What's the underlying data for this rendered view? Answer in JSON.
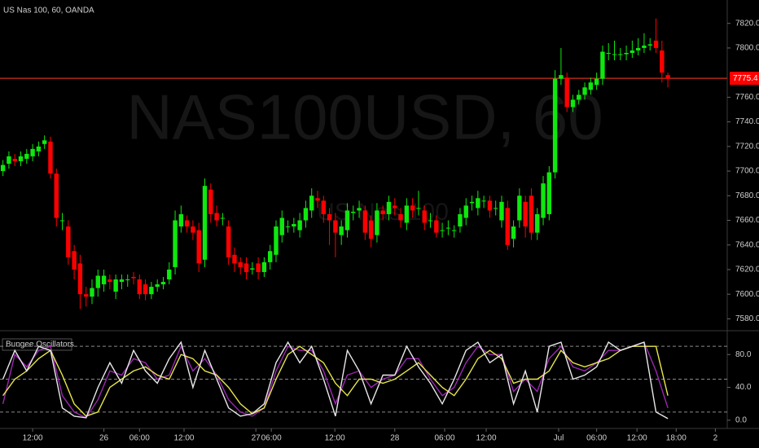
{
  "chart_data": [
    {
      "type": "candlestick",
      "title": "US Nas 100, 60, OANDA",
      "watermark": "NAS100USD, 60",
      "watermark_sub": "US Nas 100",
      "up_color": "#0ee80e",
      "down_color": "#ff0000",
      "open": [
        7700,
        7706,
        7710,
        7708,
        7710,
        7712,
        7716,
        7722,
        7724,
        7698,
        7660,
        7655,
        7635,
        7625,
        7600,
        7598,
        7605,
        7608,
        7612,
        7602,
        7610,
        7612,
        7614,
        7612,
        7608,
        7600,
        7606,
        7608,
        7612,
        7622,
        7655,
        7660,
        7655,
        7652,
        7628,
        7685,
        7666,
        7662,
        7655,
        7632,
        7626,
        7625,
        7620,
        7625,
        7618,
        7626,
        7632,
        7648,
        7655,
        7655,
        7652,
        7660,
        7668,
        7678,
        7676,
        7665,
        7660,
        7648,
        7652,
        7666,
        7668,
        7668,
        7660,
        7648,
        7668,
        7665,
        7672,
        7665,
        7658,
        7672,
        7670,
        7668,
        7660,
        7660,
        7652,
        7654,
        7652,
        7655,
        7662,
        7674,
        7670,
        7676,
        7676,
        7670,
        7660,
        7670,
        7645,
        7660,
        7675,
        7680,
        7650,
        7662,
        7665,
        7699,
        7775,
        7776,
        7752,
        7758,
        7762,
        7766,
        7770,
        7775,
        7796,
        7795,
        7795,
        7795,
        7796,
        7798,
        7800,
        7802,
        7806,
        7798,
        7778
      ],
      "high": [
        7709,
        7716,
        7714,
        7716,
        7718,
        7722,
        7724,
        7729,
        7728,
        7702,
        7666,
        7660,
        7640,
        7632,
        7606,
        7612,
        7620,
        7620,
        7616,
        7616,
        7616,
        7616,
        7618,
        7616,
        7612,
        7610,
        7612,
        7614,
        7626,
        7668,
        7672,
        7664,
        7660,
        7658,
        7694,
        7690,
        7672,
        7666,
        7660,
        7638,
        7630,
        7630,
        7626,
        7630,
        7630,
        7640,
        7660,
        7668,
        7660,
        7662,
        7666,
        7676,
        7686,
        7684,
        7680,
        7670,
        7666,
        7660,
        7674,
        7672,
        7676,
        7672,
        7664,
        7674,
        7672,
        7680,
        7678,
        7670,
        7678,
        7678,
        7684,
        7672,
        7666,
        7664,
        7658,
        7660,
        7656,
        7670,
        7678,
        7680,
        7684,
        7680,
        7680,
        7676,
        7680,
        7676,
        7660,
        7686,
        7680,
        7686,
        7670,
        7696,
        7704,
        7782,
        7800,
        7780,
        7762,
        7766,
        7772,
        7776,
        7780,
        7802,
        7804,
        7806,
        7800,
        7802,
        7806,
        7808,
        7812,
        7808,
        7824,
        7806,
        7780
      ],
      "low": [
        7696,
        7702,
        7704,
        7704,
        7706,
        7708,
        7712,
        7718,
        7694,
        7655,
        7652,
        7624,
        7612,
        7588,
        7590,
        7592,
        7598,
        7602,
        7604,
        7596,
        7604,
        7606,
        7608,
        7596,
        7595,
        7596,
        7602,
        7604,
        7608,
        7616,
        7650,
        7650,
        7644,
        7618,
        7622,
        7658,
        7655,
        7656,
        7624,
        7618,
        7616,
        7612,
        7616,
        7612,
        7614,
        7620,
        7626,
        7642,
        7650,
        7650,
        7646,
        7654,
        7662,
        7670,
        7658,
        7640,
        7630,
        7640,
        7646,
        7660,
        7662,
        7644,
        7638,
        7642,
        7660,
        7660,
        7664,
        7654,
        7652,
        7662,
        7664,
        7652,
        7654,
        7646,
        7646,
        7648,
        7646,
        7650,
        7656,
        7668,
        7664,
        7670,
        7662,
        7664,
        7654,
        7636,
        7638,
        7654,
        7646,
        7644,
        7644,
        7656,
        7660,
        7694,
        7770,
        7748,
        7748,
        7754,
        7758,
        7762,
        7766,
        7770,
        7790,
        7790,
        7790,
        7790,
        7792,
        7794,
        7796,
        7798,
        7796,
        7772,
        7768
      ],
      "close": [
        7705,
        7712,
        7708,
        7712,
        7714,
        7718,
        7720,
        7725,
        7698,
        7662,
        7660,
        7630,
        7620,
        7600,
        7598,
        7605,
        7615,
        7615,
        7610,
        7612,
        7612,
        7612,
        7613,
        7600,
        7600,
        7606,
        7608,
        7610,
        7620,
        7660,
        7665,
        7655,
        7650,
        7625,
        7688,
        7665,
        7660,
        7662,
        7630,
        7625,
        7622,
        7618,
        7621,
        7618,
        7626,
        7635,
        7655,
        7662,
        7655,
        7657,
        7660,
        7670,
        7680,
        7676,
        7665,
        7660,
        7650,
        7655,
        7668,
        7667,
        7670,
        7650,
        7645,
        7668,
        7665,
        7675,
        7670,
        7660,
        7672,
        7668,
        7670,
        7658,
        7660,
        7650,
        7652,
        7654,
        7652,
        7665,
        7672,
        7675,
        7678,
        7676,
        7668,
        7670,
        7675,
        7640,
        7655,
        7680,
        7655,
        7650,
        7665,
        7690,
        7699,
        7775,
        7778,
        7752,
        7758,
        7762,
        7768,
        7772,
        7775,
        7797,
        7796,
        7795,
        7795,
        7796,
        7798,
        7800,
        7802,
        7803,
        7800,
        7780,
        7775
      ],
      "xlim": [
        -0.5,
        122
      ],
      "xticks": [
        {
          "value": 5,
          "label": "12:00"
        },
        {
          "value": 17,
          "label": "26"
        },
        {
          "value": 23,
          "label": "06:00"
        },
        {
          "value": 30.5,
          "label": "12:00"
        },
        {
          "value": 42.6,
          "label": "27"
        },
        {
          "value": 45.2,
          "label": "06:00"
        },
        {
          "value": 55.9,
          "label": "12:00"
        },
        {
          "value": 66,
          "label": "28"
        },
        {
          "value": 74.4,
          "label": "06:00"
        },
        {
          "value": 81.4,
          "label": "12:00"
        },
        {
          "value": 93.6,
          "label": "Jul"
        },
        {
          "value": 100,
          "label": "06:00"
        },
        {
          "value": 106.8,
          "label": "12:00"
        },
        {
          "value": 113.4,
          "label": "18:00"
        },
        {
          "value": 120,
          "label": "2"
        }
      ],
      "ylim": [
        7571,
        7839
      ],
      "yticks": [
        {
          "value": 7580,
          "label": "7580.0"
        },
        {
          "value": 7600,
          "label": "7600.0"
        },
        {
          "value": 7620,
          "label": "7620.0"
        },
        {
          "value": 7640,
          "label": "7640.0"
        },
        {
          "value": 7660,
          "label": "7660.0"
        },
        {
          "value": 7680,
          "label": "7680.0"
        },
        {
          "value": 7700,
          "label": "7700.0"
        },
        {
          "value": 7720,
          "label": "7720.0"
        },
        {
          "value": 7740,
          "label": "7740.0"
        },
        {
          "value": 7760,
          "label": "7760.0"
        },
        {
          "value": 7800,
          "label": "7800.0"
        },
        {
          "value": 7820,
          "label": "7820.0"
        }
      ],
      "last_price": 7775.4,
      "last_price_color": "#ff3b1f"
    },
    {
      "type": "line",
      "title": "Bungee Oscillators",
      "x": [
        0,
        2,
        4,
        6,
        8,
        10,
        12,
        14,
        16,
        18,
        20,
        22,
        24,
        26,
        28,
        30,
        32,
        34,
        36,
        38,
        40,
        42,
        44,
        46,
        48,
        50,
        52,
        54,
        56,
        58,
        60,
        62,
        64,
        66,
        68,
        70,
        72,
        74,
        76,
        78,
        80,
        82,
        84,
        86,
        88,
        90,
        92,
        94,
        96,
        98,
        100,
        102,
        104,
        106,
        108,
        110,
        112
      ],
      "xlim": [
        -0.5,
        122
      ],
      "ylim": [
        -9,
        108
      ],
      "yticks": [
        {
          "value": 0,
          "label": "0.0"
        },
        {
          "value": 40,
          "label": "40.0"
        },
        {
          "value": 80,
          "label": "80.0"
        }
      ],
      "levels": [
        90,
        50,
        10
      ],
      "series": [
        {
          "color": "#9c27b0",
          "values": [
            20,
            80,
            65,
            85,
            90,
            30,
            10,
            3,
            25,
            60,
            55,
            75,
            70,
            50,
            55,
            90,
            60,
            75,
            55,
            25,
            10,
            5,
            15,
            60,
            90,
            85,
            85,
            60,
            20,
            55,
            60,
            40,
            50,
            55,
            75,
            75,
            50,
            30,
            40,
            70,
            90,
            80,
            80,
            35,
            50,
            35,
            75,
            90,
            65,
            60,
            70,
            85,
            85,
            90,
            95,
            60,
            15
          ]
        },
        {
          "color": "#e6e64a",
          "values": [
            30,
            50,
            60,
            75,
            85,
            55,
            20,
            5,
            10,
            40,
            50,
            60,
            65,
            55,
            50,
            80,
            75,
            60,
            55,
            40,
            20,
            8,
            15,
            50,
            80,
            90,
            80,
            70,
            45,
            30,
            50,
            50,
            45,
            50,
            60,
            70,
            55,
            40,
            30,
            50,
            75,
            85,
            75,
            45,
            50,
            50,
            60,
            85,
            70,
            65,
            70,
            75,
            85,
            90,
            90,
            90,
            30
          ]
        },
        {
          "color": "#e8e8e8",
          "values": [
            50,
            85,
            60,
            90,
            85,
            15,
            5,
            3,
            40,
            70,
            45,
            85,
            60,
            45,
            75,
            95,
            40,
            85,
            50,
            15,
            5,
            8,
            20,
            70,
            95,
            70,
            90,
            50,
            5,
            85,
            60,
            20,
            55,
            55,
            90,
            65,
            45,
            20,
            50,
            85,
            95,
            70,
            80,
            20,
            60,
            10,
            90,
            95,
            50,
            55,
            65,
            95,
            85,
            90,
            95,
            10,
            2
          ]
        }
      ]
    }
  ]
}
